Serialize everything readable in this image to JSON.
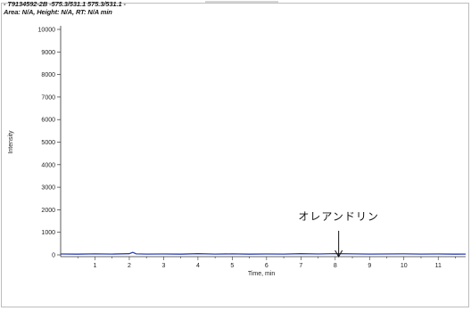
{
  "header": {
    "line1": "- T9134592-2B -575.3/531.1 575.3/531.1 -",
    "line2": "Area: N/A, Height: N/A, RT: N/A min"
  },
  "chart_data": {
    "type": "line",
    "title": "",
    "xlabel": "Time, min",
    "ylabel": "Intensity",
    "xlim": [
      0,
      11.8
    ],
    "ylim": [
      0,
      10000
    ],
    "x_ticks": [
      1,
      2,
      3,
      4,
      5,
      6,
      7,
      8,
      9,
      10,
      11
    ],
    "y_ticks": [
      0,
      1000,
      2000,
      3000,
      4000,
      5000,
      6000,
      7000,
      8000,
      9000,
      10000
    ],
    "series": [
      {
        "color": "#2b3fb0",
        "x": [
          0,
          0.5,
          1,
          1.5,
          2,
          2.1,
          2.2,
          2.5,
          3,
          3.5,
          4,
          4.5,
          5,
          5.5,
          6,
          6.5,
          7,
          7.5,
          8,
          8.5,
          9,
          9.5,
          10,
          10.5,
          11,
          11.5,
          11.8
        ],
        "y": [
          40,
          30,
          45,
          35,
          50,
          110,
          45,
          35,
          40,
          30,
          50,
          35,
          45,
          30,
          40,
          35,
          50,
          40,
          55,
          45,
          35,
          40,
          45,
          35,
          40,
          30,
          35
        ]
      }
    ],
    "annotations": [
      {
        "text": "オレアンドリン",
        "x": 8.1,
        "arrow": "down"
      }
    ],
    "grid": false
  }
}
